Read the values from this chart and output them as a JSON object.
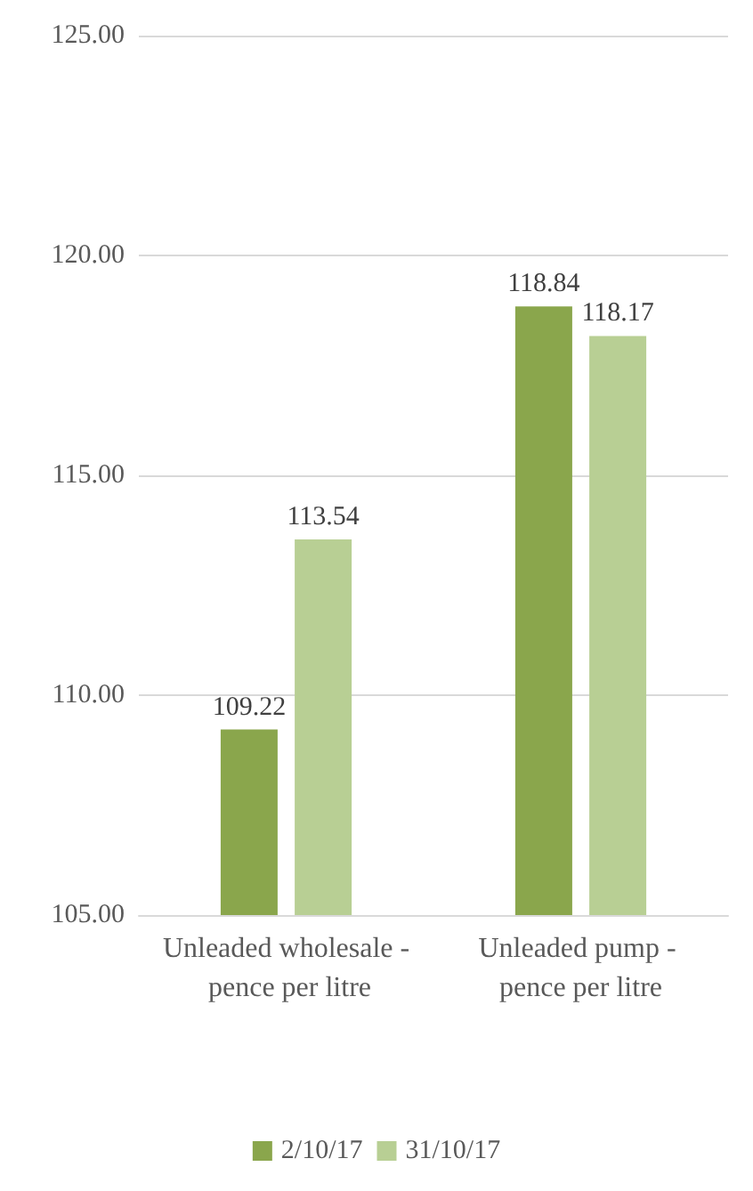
{
  "chart_data": {
    "type": "bar",
    "categories": [
      "Unleaded wholesale - pence per litre",
      "Unleaded pump - pence per litre"
    ],
    "series": [
      {
        "name": "2/10/17",
        "color": "#8aa64c",
        "values": [
          109.22,
          118.84
        ]
      },
      {
        "name": "31/10/17",
        "color": "#b8cf94",
        "values": [
          113.54,
          118.17
        ]
      }
    ],
    "ylim": [
      105,
      125
    ],
    "yticks": [
      {
        "value": 105,
        "label": "105.00"
      },
      {
        "value": 110,
        "label": "110.00"
      },
      {
        "value": 115,
        "label": "115.00"
      },
      {
        "value": 120,
        "label": "120.00"
      },
      {
        "value": 125,
        "label": "125.00"
      }
    ],
    "grid": "y",
    "legend": "bottom",
    "data_labels": true
  }
}
